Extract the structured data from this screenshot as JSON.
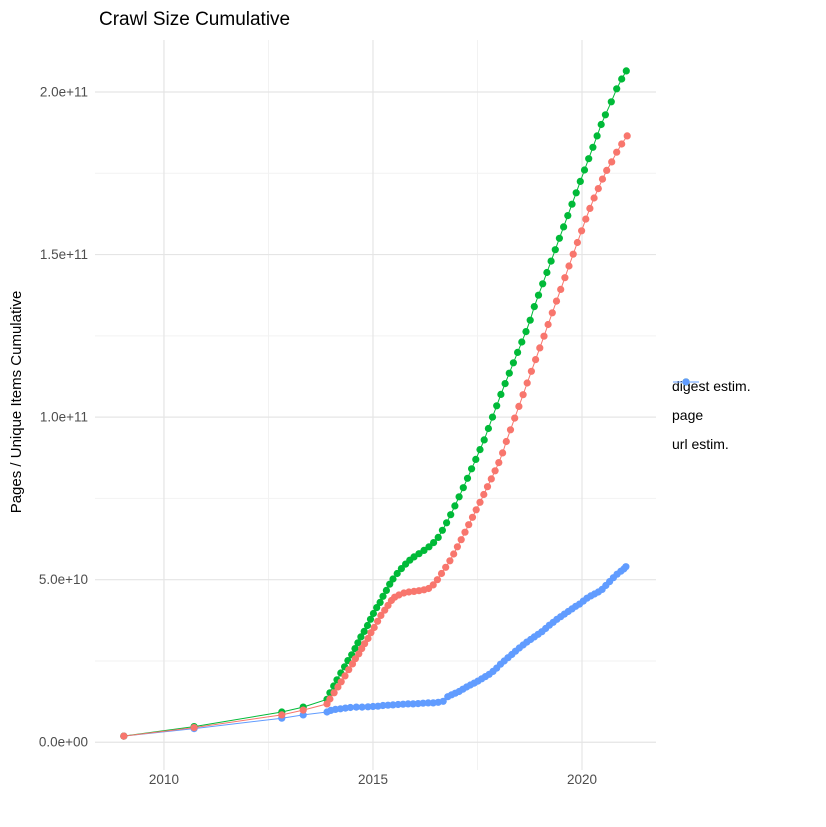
{
  "chart_data": {
    "type": "line",
    "title": "Crawl Size Cumulative",
    "xlabel": "",
    "ylabel": "Pages / Unique Items Cumulative",
    "grid": true,
    "legend_position": "right",
    "xlim": [
      2008.47,
      2021.77
    ],
    "ylim_e9": [
      -7,
      216
    ],
    "y_unit": 1000000000.0,
    "x_ticks": [
      {
        "v": 2010,
        "label": "2010"
      },
      {
        "v": 2015,
        "label": "2015"
      },
      {
        "v": 2020,
        "label": "2020"
      }
    ],
    "x_minor_ticks": [
      2012.5,
      2017.5
    ],
    "y_ticks": [
      {
        "v": 0,
        "label": "0.0e+00"
      },
      {
        "v": 50,
        "label": "5.0e+10"
      },
      {
        "v": 100,
        "label": "1.0e+11"
      },
      {
        "v": 150,
        "label": "1.5e+11"
      },
      {
        "v": 200,
        "label": "2.0e+11"
      }
    ],
    "y_minor_ticks": [
      25,
      75,
      125,
      175
    ],
    "draw_order": [
      "url estim.",
      "page",
      "digest estim."
    ],
    "series": [
      {
        "name": "digest estim.",
        "color": "#F8766D",
        "points_year_e9": [
          [
            2009.04,
            1.9
          ],
          [
            2010.72,
            4.5
          ],
          [
            2012.82,
            8.4
          ],
          [
            2013.33,
            9.9
          ],
          [
            2013.9,
            11.8
          ],
          [
            2013.97,
            13.3
          ],
          [
            2014.07,
            15.2
          ],
          [
            2014.16,
            17
          ],
          [
            2014.24,
            18.6
          ],
          [
            2014.33,
            20.4
          ],
          [
            2014.42,
            22.3
          ],
          [
            2014.51,
            24.1
          ],
          [
            2014.58,
            25.7
          ],
          [
            2014.66,
            27.2
          ],
          [
            2014.73,
            28.8
          ],
          [
            2014.8,
            30.3
          ],
          [
            2014.88,
            31.9
          ],
          [
            2014.95,
            33.7
          ],
          [
            2015.03,
            35.3
          ],
          [
            2015.11,
            37.2
          ],
          [
            2015.19,
            39
          ],
          [
            2015.28,
            40.6
          ],
          [
            2015.36,
            42.1
          ],
          [
            2015.44,
            43.6
          ],
          [
            2015.52,
            44.6
          ],
          [
            2015.62,
            45.3
          ],
          [
            2015.74,
            45.9
          ],
          [
            2015.86,
            46.2
          ],
          [
            2015.98,
            46.4
          ],
          [
            2016.1,
            46.6
          ],
          [
            2016.22,
            46.9
          ],
          [
            2016.33,
            47.3
          ],
          [
            2016.44,
            48.4
          ],
          [
            2016.54,
            50
          ],
          [
            2016.64,
            51.9
          ],
          [
            2016.74,
            53.8
          ],
          [
            2016.84,
            55.8
          ],
          [
            2016.93,
            57.9
          ],
          [
            2017.02,
            60.1
          ],
          [
            2017.11,
            62.3
          ],
          [
            2017.2,
            64.6
          ],
          [
            2017.29,
            66.9
          ],
          [
            2017.38,
            69.2
          ],
          [
            2017.47,
            71.5
          ],
          [
            2017.56,
            73.8
          ],
          [
            2017.65,
            76.2
          ],
          [
            2017.74,
            78.6
          ],
          [
            2017.83,
            81
          ],
          [
            2017.92,
            83.5
          ],
          [
            2018.01,
            86
          ],
          [
            2018.1,
            89
          ],
          [
            2018.19,
            92.5
          ],
          [
            2018.29,
            96.1
          ],
          [
            2018.39,
            99.7
          ],
          [
            2018.49,
            103.3
          ],
          [
            2018.59,
            106.9
          ],
          [
            2018.69,
            110.5
          ],
          [
            2018.79,
            114.1
          ],
          [
            2018.89,
            117.7
          ],
          [
            2018.99,
            121.3
          ],
          [
            2019.09,
            124.9
          ],
          [
            2019.19,
            128.5
          ],
          [
            2019.29,
            132.1
          ],
          [
            2019.39,
            135.7
          ],
          [
            2019.49,
            139.3
          ],
          [
            2019.59,
            142.9
          ],
          [
            2019.69,
            146.5
          ],
          [
            2019.79,
            150.1
          ],
          [
            2019.89,
            153.7
          ],
          [
            2019.99,
            157.3
          ],
          [
            2020.09,
            160.9
          ],
          [
            2020.19,
            164.2
          ],
          [
            2020.29,
            167.4
          ],
          [
            2020.39,
            170.3
          ],
          [
            2020.49,
            173.2
          ],
          [
            2020.59,
            175.9
          ],
          [
            2020.71,
            178.5
          ],
          [
            2020.83,
            181.5
          ],
          [
            2020.95,
            184
          ],
          [
            2021.08,
            186.5
          ]
        ]
      },
      {
        "name": "page",
        "color": "#00BA38",
        "points_year_e9": [
          [
            2009.04,
            1.9
          ],
          [
            2010.72,
            4.8
          ],
          [
            2012.82,
            9.3
          ],
          [
            2013.33,
            10.8
          ],
          [
            2013.9,
            13.2
          ],
          [
            2013.97,
            15.2
          ],
          [
            2014.06,
            17.3
          ],
          [
            2014.14,
            19.2
          ],
          [
            2014.23,
            21.3
          ],
          [
            2014.32,
            23.2
          ],
          [
            2014.4,
            25.1
          ],
          [
            2014.49,
            26.9
          ],
          [
            2014.57,
            28.8
          ],
          [
            2014.64,
            30.6
          ],
          [
            2014.71,
            32.4
          ],
          [
            2014.79,
            34.1
          ],
          [
            2014.87,
            35.9
          ],
          [
            2014.94,
            37.8
          ],
          [
            2015.01,
            39.6
          ],
          [
            2015.09,
            41.4
          ],
          [
            2015.17,
            43
          ],
          [
            2015.24,
            44.9
          ],
          [
            2015.32,
            46.7
          ],
          [
            2015.4,
            48.6
          ],
          [
            2015.48,
            50.2
          ],
          [
            2015.58,
            51.9
          ],
          [
            2015.68,
            53.4
          ],
          [
            2015.78,
            54.8
          ],
          [
            2015.88,
            56
          ],
          [
            2015.98,
            57
          ],
          [
            2016.1,
            58
          ],
          [
            2016.22,
            59
          ],
          [
            2016.34,
            60.1
          ],
          [
            2016.45,
            61.4
          ],
          [
            2016.56,
            63
          ],
          [
            2016.66,
            65.2
          ],
          [
            2016.76,
            67.5
          ],
          [
            2016.86,
            70
          ],
          [
            2016.96,
            72.7
          ],
          [
            2017.06,
            75.5
          ],
          [
            2017.16,
            78.3
          ],
          [
            2017.26,
            81.2
          ],
          [
            2017.36,
            84.1
          ],
          [
            2017.46,
            87
          ],
          [
            2017.56,
            90
          ],
          [
            2017.66,
            93
          ],
          [
            2017.76,
            96.5
          ],
          [
            2017.86,
            100
          ],
          [
            2017.96,
            103.5
          ],
          [
            2018.06,
            107
          ],
          [
            2018.16,
            110.3
          ],
          [
            2018.26,
            113.5
          ],
          [
            2018.36,
            116.7
          ],
          [
            2018.46,
            119.9
          ],
          [
            2018.56,
            123.1
          ],
          [
            2018.66,
            126.3
          ],
          [
            2018.76,
            129.8
          ],
          [
            2018.86,
            134
          ],
          [
            2018.96,
            137.5
          ],
          [
            2019.06,
            141
          ],
          [
            2019.16,
            144.5
          ],
          [
            2019.26,
            148
          ],
          [
            2019.36,
            151.5
          ],
          [
            2019.46,
            155
          ],
          [
            2019.56,
            158.5
          ],
          [
            2019.66,
            162
          ],
          [
            2019.76,
            165.5
          ],
          [
            2019.86,
            169
          ],
          [
            2019.96,
            172.5
          ],
          [
            2020.06,
            176
          ],
          [
            2020.16,
            179.5
          ],
          [
            2020.26,
            183
          ],
          [
            2020.36,
            186.5
          ],
          [
            2020.46,
            190
          ],
          [
            2020.56,
            193
          ],
          [
            2020.7,
            197
          ],
          [
            2020.83,
            201
          ],
          [
            2020.95,
            204
          ],
          [
            2021.06,
            206.5
          ]
        ]
      },
      {
        "name": "url estim.",
        "color": "#619CFF",
        "points_year_e9": [
          [
            2009.04,
            1.9
          ],
          [
            2010.72,
            4.2
          ],
          [
            2012.82,
            7.4
          ],
          [
            2013.33,
            8.4
          ],
          [
            2013.9,
            9.3
          ],
          [
            2013.99,
            9.8
          ],
          [
            2014.1,
            10.1
          ],
          [
            2014.22,
            10.3
          ],
          [
            2014.34,
            10.5
          ],
          [
            2014.46,
            10.7
          ],
          [
            2014.6,
            10.8
          ],
          [
            2014.74,
            10.8
          ],
          [
            2014.88,
            10.9
          ],
          [
            2015,
            11
          ],
          [
            2015.12,
            11.1
          ],
          [
            2015.24,
            11.3
          ],
          [
            2015.36,
            11.4
          ],
          [
            2015.48,
            11.5
          ],
          [
            2015.6,
            11.6
          ],
          [
            2015.72,
            11.7
          ],
          [
            2015.84,
            11.8
          ],
          [
            2015.96,
            11.8
          ],
          [
            2016.08,
            11.9
          ],
          [
            2016.2,
            12
          ],
          [
            2016.32,
            12.1
          ],
          [
            2016.44,
            12.1
          ],
          [
            2016.56,
            12.3
          ],
          [
            2016.68,
            12.6
          ],
          [
            2016.79,
            14
          ],
          [
            2016.88,
            14.6
          ],
          [
            2016.97,
            15.1
          ],
          [
            2017.06,
            15.6
          ],
          [
            2017.15,
            16.3
          ],
          [
            2017.24,
            17
          ],
          [
            2017.33,
            17.6
          ],
          [
            2017.42,
            18.2
          ],
          [
            2017.51,
            18.8
          ],
          [
            2017.6,
            19.5
          ],
          [
            2017.69,
            20.2
          ],
          [
            2017.78,
            20.9
          ],
          [
            2017.87,
            21.8
          ],
          [
            2017.96,
            22.8
          ],
          [
            2018.05,
            24
          ],
          [
            2018.14,
            25
          ],
          [
            2018.23,
            26
          ],
          [
            2018.32,
            27
          ],
          [
            2018.41,
            28
          ],
          [
            2018.5,
            29
          ],
          [
            2018.59,
            29.9
          ],
          [
            2018.68,
            30.8
          ],
          [
            2018.77,
            31.6
          ],
          [
            2018.86,
            32.4
          ],
          [
            2018.95,
            33.2
          ],
          [
            2019.04,
            34
          ],
          [
            2019.13,
            35
          ],
          [
            2019.22,
            36
          ],
          [
            2019.31,
            36.9
          ],
          [
            2019.4,
            37.8
          ],
          [
            2019.49,
            38.6
          ],
          [
            2019.58,
            39.4
          ],
          [
            2019.67,
            40.2
          ],
          [
            2019.76,
            41
          ],
          [
            2019.85,
            41.8
          ],
          [
            2019.94,
            42.5
          ],
          [
            2020.03,
            43.4
          ],
          [
            2020.12,
            44.3
          ],
          [
            2020.21,
            45
          ],
          [
            2020.3,
            45.6
          ],
          [
            2020.39,
            46.2
          ],
          [
            2020.48,
            47
          ],
          [
            2020.57,
            48.2
          ],
          [
            2020.66,
            49.4
          ],
          [
            2020.75,
            50.6
          ],
          [
            2020.84,
            51.7
          ],
          [
            2020.93,
            52.6
          ],
          [
            2021,
            53.3
          ],
          [
            2021.05,
            54
          ]
        ]
      }
    ]
  },
  "legend": {
    "entries": [
      "digest estim.",
      "page",
      "url estim."
    ]
  },
  "style": {
    "background": "#ffffff",
    "grid_major_color": "#e5e5e5",
    "grid_minor_color": "#f2f2f2",
    "tick_label_color": "#4d4d4d",
    "title_color": "#000000"
  }
}
